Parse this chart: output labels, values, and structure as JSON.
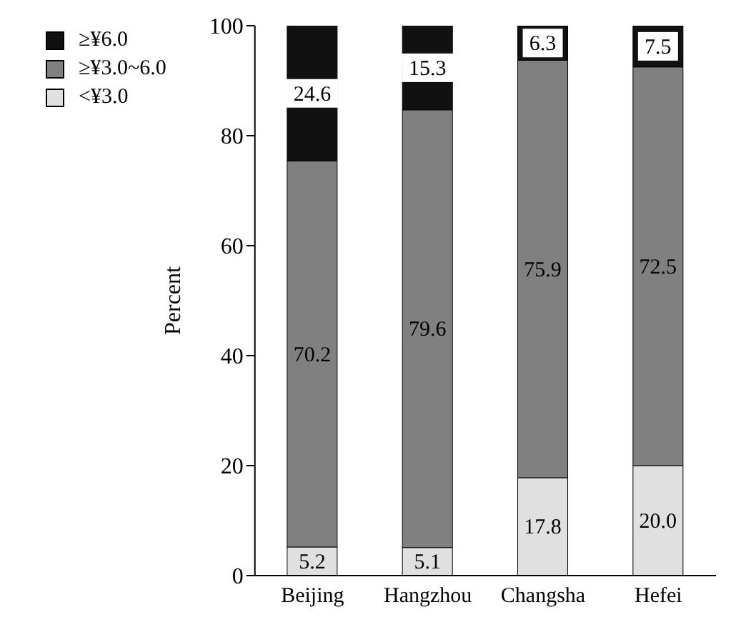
{
  "chart_data": {
    "type": "bar",
    "stacked": true,
    "ylabel": "Percent",
    "categories": [
      "Beijing",
      "Hangzhou",
      "Changsha",
      "Hefei"
    ],
    "series": [
      {
        "name": "<¥3.0",
        "color": "#e0e0e0",
        "values": [
          5.2,
          5.1,
          17.8,
          20.0
        ],
        "value_labels": [
          "5.2",
          "5.1",
          "17.8",
          "20.0"
        ]
      },
      {
        "name": "≥¥3.0~6.0",
        "color": "#808080",
        "values": [
          70.2,
          79.6,
          75.9,
          72.5
        ],
        "value_labels": [
          "70.2",
          "79.6",
          "75.9",
          "72.5"
        ]
      },
      {
        "name": "≥¥6.0",
        "color": "#111111",
        "values": [
          24.6,
          15.3,
          6.3,
          7.5
        ],
        "value_labels": [
          "24.6",
          "15.3",
          "6.3",
          "7.5"
        ]
      }
    ],
    "ylim": [
      0,
      100
    ],
    "yticks": [
      0,
      20,
      40,
      60,
      80,
      100
    ],
    "legend": "top left"
  }
}
